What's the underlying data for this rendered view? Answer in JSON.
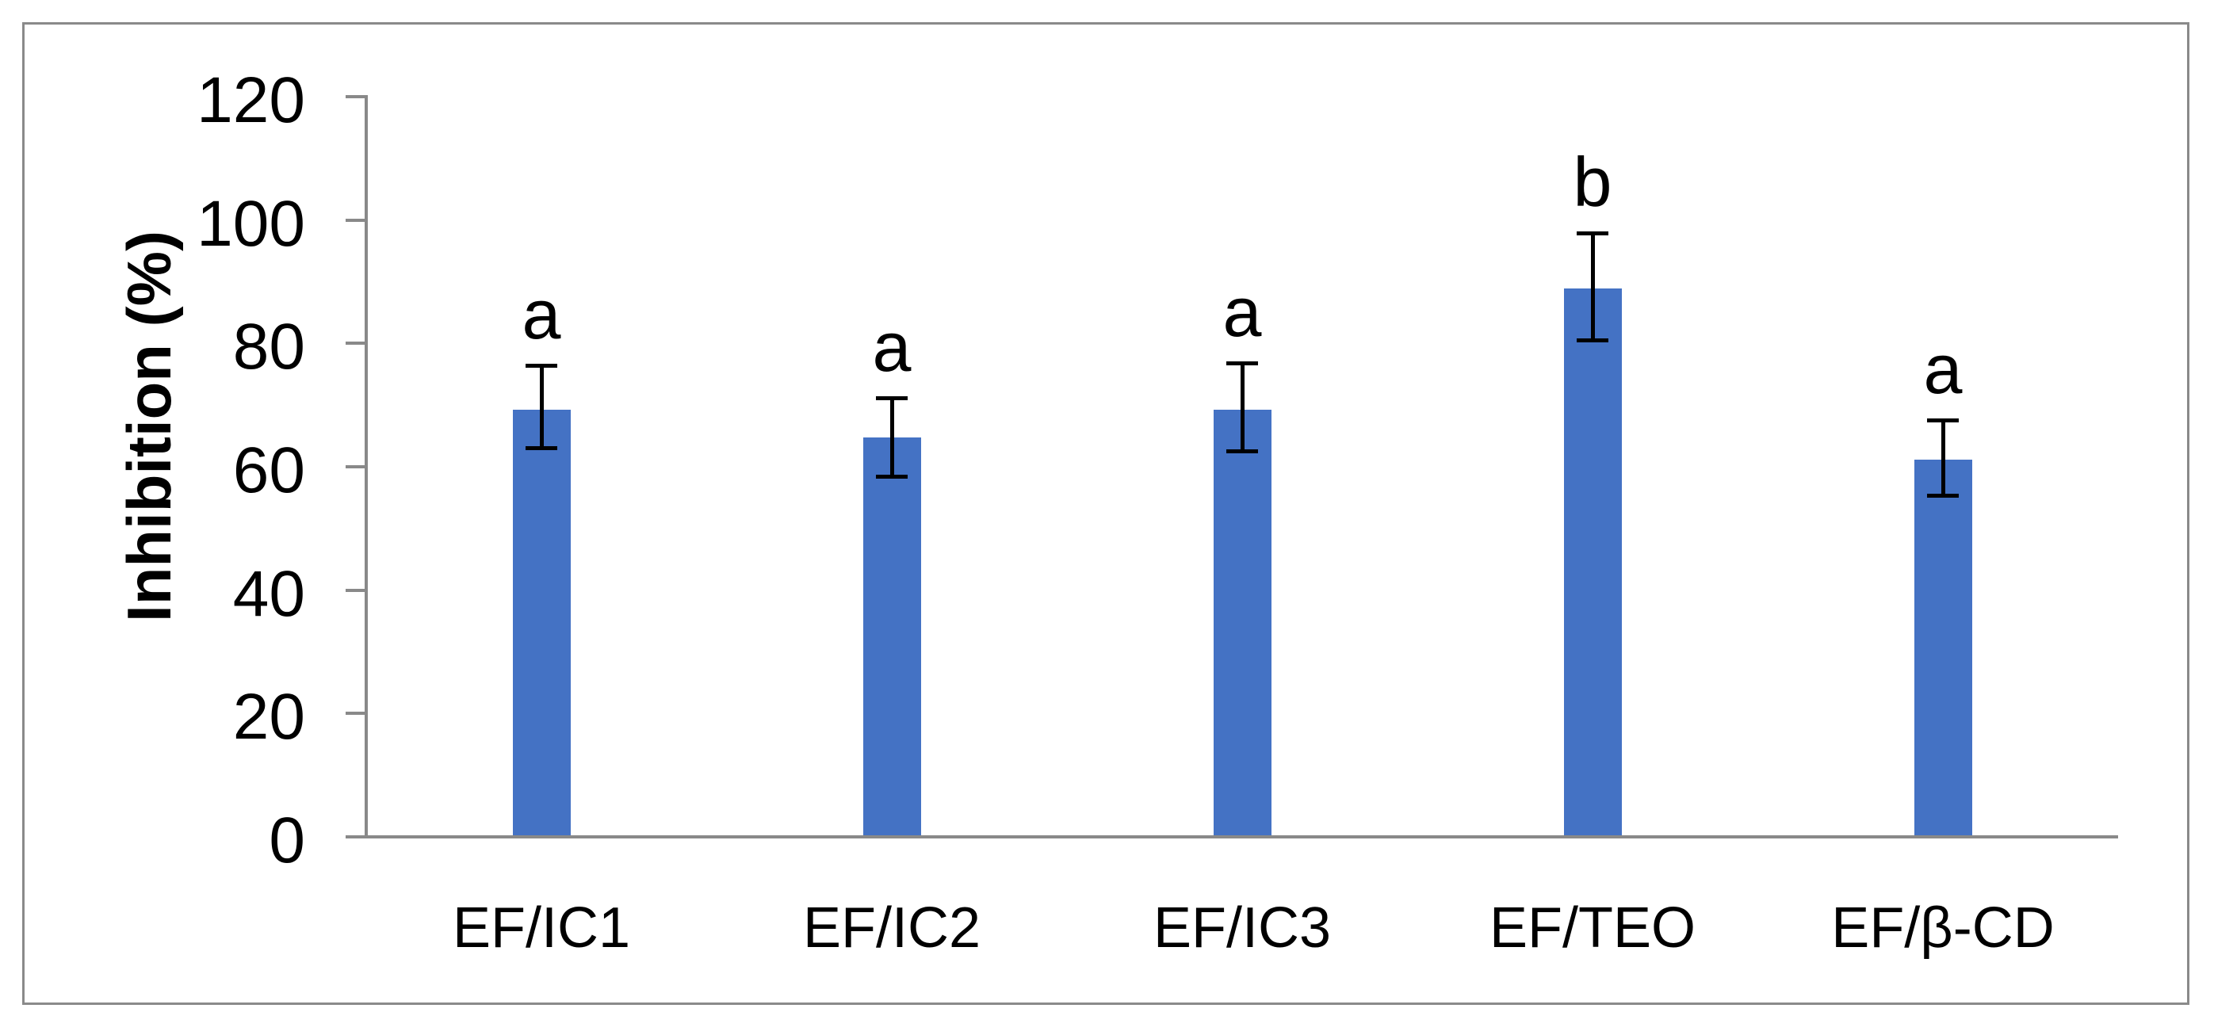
{
  "chart_data": {
    "type": "bar",
    "title": "",
    "xlabel": "",
    "ylabel": "Inhibition (%)",
    "categories": [
      "EF/IC1",
      "EF/IC2",
      "EF/IC3",
      "EF/TEO",
      "EF/β-CD"
    ],
    "values": [
      69.3,
      64.7,
      69.3,
      88.9,
      61.1
    ],
    "error_up": [
      7.1,
      6.5,
      7.5,
      9.0,
      6.5
    ],
    "error_down": [
      6.3,
      6.4,
      6.9,
      8.5,
      5.9
    ],
    "sig_letters": [
      "a",
      "a",
      "a",
      "b",
      "a"
    ],
    "yticks": [
      0,
      20,
      40,
      60,
      80,
      100,
      120
    ],
    "ylim": [
      0,
      120
    ],
    "grid": false,
    "legend": "none",
    "colors": {
      "bar": "#4472C4",
      "error_bar": "#000000",
      "axis": "#898989",
      "frame_border": "#8a8a8a",
      "text": "#000000",
      "background": "#ffffff"
    }
  }
}
